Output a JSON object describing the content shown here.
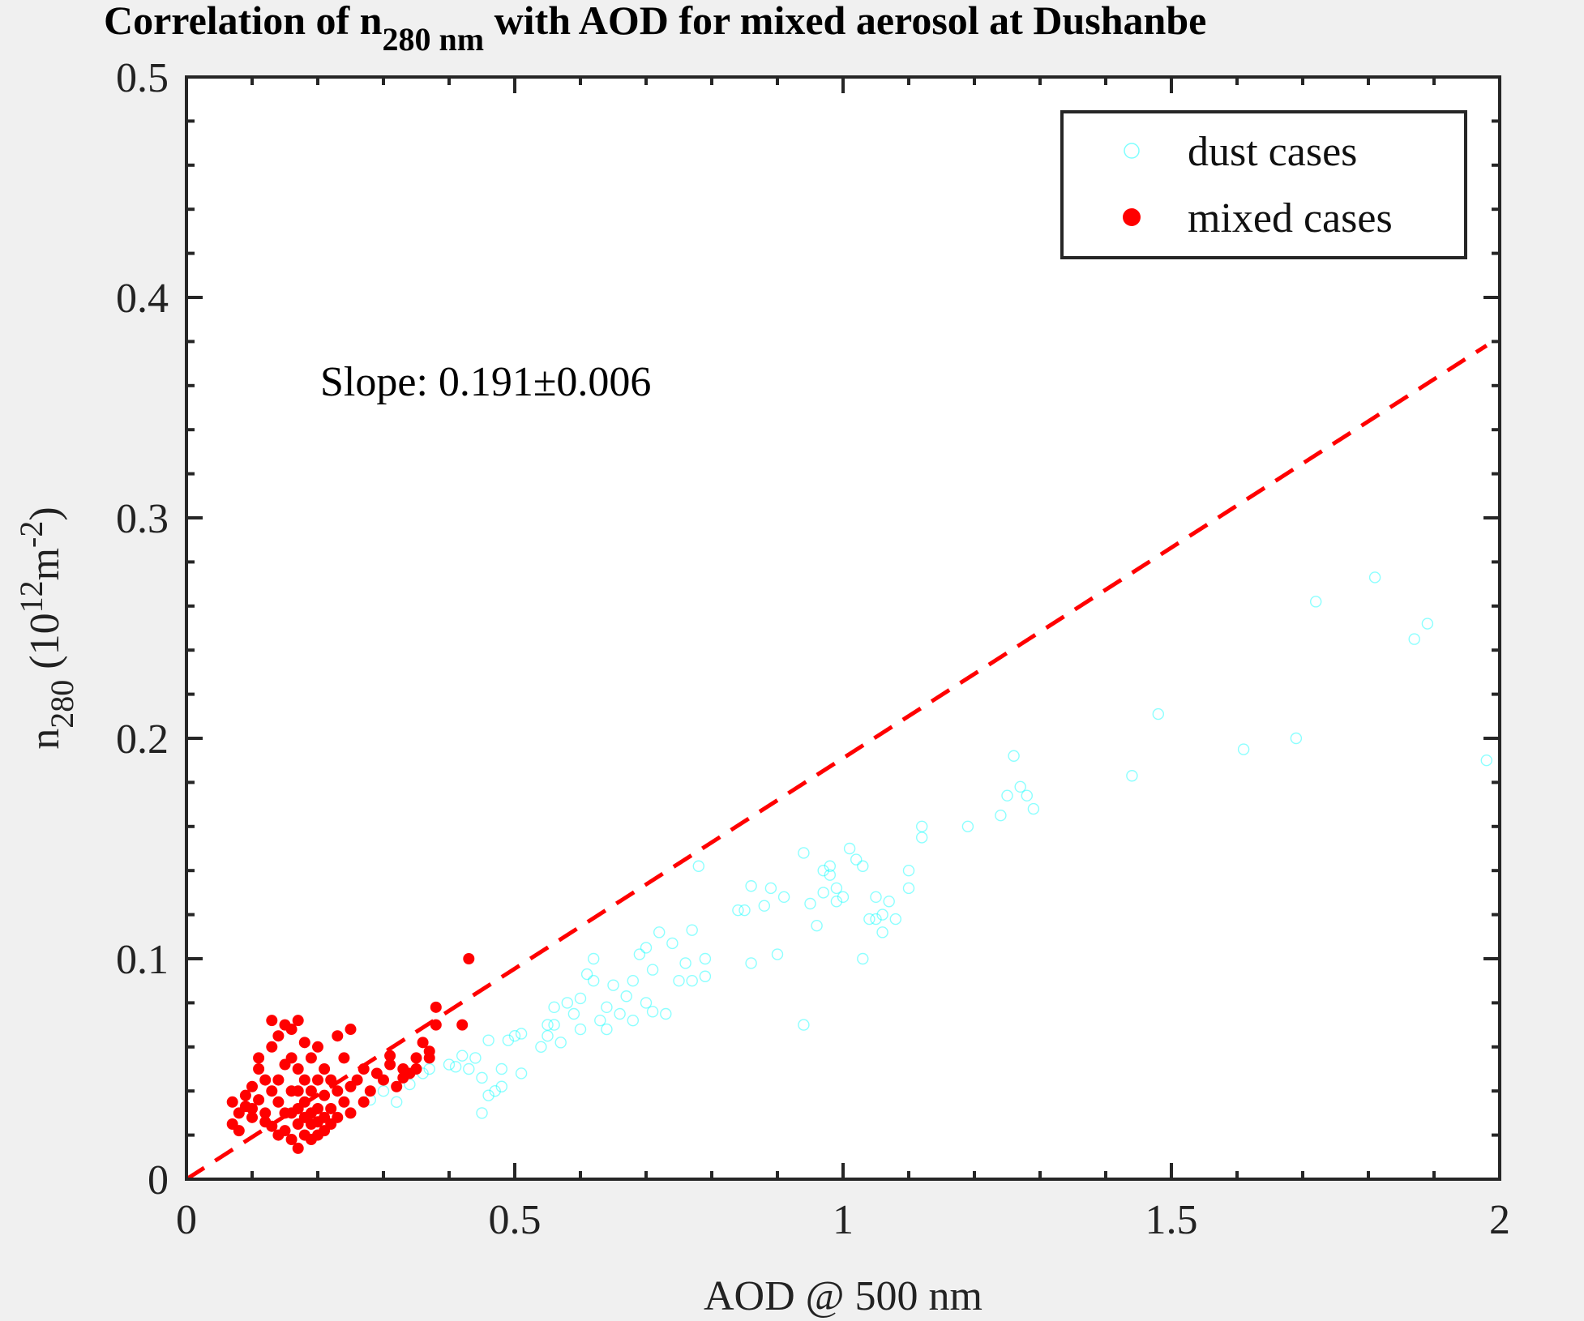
{
  "title": {
    "prefix": "Correlation of n",
    "subscript": "280 nm",
    "suffix": " with AOD for mixed aerosol at Dushanbe"
  },
  "annotation": "Slope: 0.191±0.006",
  "colors": {
    "background": "#f0f0f0",
    "plot_area": "#ffffff",
    "dust": "#00ffff",
    "mixed": "#ff0000",
    "fit_line": "#ff0000"
  },
  "chart_data": {
    "type": "scatter",
    "title": "Correlation of n280 nm with AOD for mixed aerosol at Dushanbe",
    "xlabel": "AOD @ 500 nm",
    "ylabel": {
      "base": "n",
      "base_sub": "280",
      "unit_open": " (10",
      "unit_sup1": "12",
      "unit_mid": "m",
      "unit_sup2": "-2",
      "unit_close": ")"
    },
    "xlim": [
      0,
      2
    ],
    "ylim": [
      0,
      0.5
    ],
    "x_ticks": [
      0,
      0.5,
      1,
      1.5,
      2
    ],
    "x_tick_labels": [
      "0",
      "0.5",
      "1",
      "1.5",
      "2"
    ],
    "y_ticks": [
      0,
      0.1,
      0.2,
      0.3,
      0.4,
      0.5
    ],
    "y_tick_labels": [
      "0",
      "0.1",
      "0.2",
      "0.3",
      "0.4",
      "0.5"
    ],
    "legend_position": "top-right",
    "grid": false,
    "fit_line": {
      "slope": 0.191,
      "intercept": 0,
      "x_range": [
        0,
        1.98
      ],
      "style": "dashed"
    },
    "series": [
      {
        "name": "dust cases",
        "marker": "open-circle",
        "points": [
          [
            0.28,
            0.036
          ],
          [
            0.3,
            0.04
          ],
          [
            0.32,
            0.035
          ],
          [
            0.34,
            0.043
          ],
          [
            0.36,
            0.048
          ],
          [
            0.37,
            0.05
          ],
          [
            0.4,
            0.052
          ],
          [
            0.41,
            0.051
          ],
          [
            0.42,
            0.056
          ],
          [
            0.43,
            0.05
          ],
          [
            0.44,
            0.055
          ],
          [
            0.45,
            0.03
          ],
          [
            0.45,
            0.046
          ],
          [
            0.46,
            0.038
          ],
          [
            0.46,
            0.063
          ],
          [
            0.47,
            0.04
          ],
          [
            0.48,
            0.042
          ],
          [
            0.48,
            0.05
          ],
          [
            0.49,
            0.063
          ],
          [
            0.5,
            0.065
          ],
          [
            0.51,
            0.066
          ],
          [
            0.51,
            0.048
          ],
          [
            0.54,
            0.06
          ],
          [
            0.55,
            0.065
          ],
          [
            0.55,
            0.07
          ],
          [
            0.56,
            0.07
          ],
          [
            0.56,
            0.078
          ],
          [
            0.57,
            0.062
          ],
          [
            0.58,
            0.08
          ],
          [
            0.59,
            0.075
          ],
          [
            0.6,
            0.068
          ],
          [
            0.6,
            0.082
          ],
          [
            0.61,
            0.093
          ],
          [
            0.62,
            0.09
          ],
          [
            0.62,
            0.1
          ],
          [
            0.63,
            0.072
          ],
          [
            0.64,
            0.068
          ],
          [
            0.64,
            0.078
          ],
          [
            0.65,
            0.088
          ],
          [
            0.66,
            0.075
          ],
          [
            0.67,
            0.083
          ],
          [
            0.68,
            0.072
          ],
          [
            0.68,
            0.09
          ],
          [
            0.69,
            0.102
          ],
          [
            0.7,
            0.105
          ],
          [
            0.7,
            0.08
          ],
          [
            0.71,
            0.076
          ],
          [
            0.71,
            0.095
          ],
          [
            0.72,
            0.112
          ],
          [
            0.73,
            0.075
          ],
          [
            0.74,
            0.107
          ],
          [
            0.75,
            0.09
          ],
          [
            0.76,
            0.098
          ],
          [
            0.77,
            0.09
          ],
          [
            0.77,
            0.113
          ],
          [
            0.78,
            0.142
          ],
          [
            0.79,
            0.092
          ],
          [
            0.79,
            0.1
          ],
          [
            0.84,
            0.122
          ],
          [
            0.85,
            0.122
          ],
          [
            0.86,
            0.133
          ],
          [
            0.86,
            0.098
          ],
          [
            0.88,
            0.124
          ],
          [
            0.89,
            0.132
          ],
          [
            0.9,
            0.102
          ],
          [
            0.91,
            0.128
          ],
          [
            0.94,
            0.148
          ],
          [
            0.94,
            0.07
          ],
          [
            0.95,
            0.125
          ],
          [
            0.96,
            0.115
          ],
          [
            0.97,
            0.13
          ],
          [
            0.97,
            0.14
          ],
          [
            0.98,
            0.142
          ],
          [
            0.98,
            0.138
          ],
          [
            0.99,
            0.132
          ],
          [
            0.99,
            0.126
          ],
          [
            1.0,
            0.128
          ],
          [
            1.01,
            0.15
          ],
          [
            1.02,
            0.145
          ],
          [
            1.03,
            0.142
          ],
          [
            1.03,
            0.1
          ],
          [
            1.04,
            0.118
          ],
          [
            1.05,
            0.118
          ],
          [
            1.05,
            0.128
          ],
          [
            1.06,
            0.112
          ],
          [
            1.06,
            0.12
          ],
          [
            1.07,
            0.126
          ],
          [
            1.08,
            0.118
          ],
          [
            1.1,
            0.132
          ],
          [
            1.1,
            0.14
          ],
          [
            1.12,
            0.155
          ],
          [
            1.12,
            0.16
          ],
          [
            1.19,
            0.16
          ],
          [
            1.24,
            0.165
          ],
          [
            1.25,
            0.174
          ],
          [
            1.26,
            0.192
          ],
          [
            1.27,
            0.178
          ],
          [
            1.28,
            0.174
          ],
          [
            1.29,
            0.168
          ],
          [
            1.44,
            0.183
          ],
          [
            1.48,
            0.211
          ],
          [
            1.61,
            0.195
          ],
          [
            1.69,
            0.2
          ],
          [
            1.72,
            0.262
          ],
          [
            1.81,
            0.273
          ],
          [
            1.87,
            0.245
          ],
          [
            1.89,
            0.252
          ],
          [
            1.98,
            0.19
          ]
        ]
      },
      {
        "name": "mixed cases",
        "marker": "filled-circle",
        "points": [
          [
            0.07,
            0.025
          ],
          [
            0.07,
            0.035
          ],
          [
            0.08,
            0.03
          ],
          [
            0.08,
            0.022
          ],
          [
            0.09,
            0.033
          ],
          [
            0.09,
            0.038
          ],
          [
            0.1,
            0.028
          ],
          [
            0.1,
            0.042
          ],
          [
            0.1,
            0.032
          ],
          [
            0.11,
            0.05
          ],
          [
            0.11,
            0.055
          ],
          [
            0.11,
            0.036
          ],
          [
            0.12,
            0.045
          ],
          [
            0.12,
            0.03
          ],
          [
            0.12,
            0.026
          ],
          [
            0.13,
            0.072
          ],
          [
            0.13,
            0.06
          ],
          [
            0.13,
            0.04
          ],
          [
            0.13,
            0.024
          ],
          [
            0.14,
            0.065
          ],
          [
            0.14,
            0.045
          ],
          [
            0.14,
            0.035
          ],
          [
            0.14,
            0.02
          ],
          [
            0.15,
            0.07
          ],
          [
            0.15,
            0.052
          ],
          [
            0.15,
            0.03
          ],
          [
            0.15,
            0.022
          ],
          [
            0.16,
            0.068
          ],
          [
            0.16,
            0.055
          ],
          [
            0.16,
            0.04
          ],
          [
            0.16,
            0.03
          ],
          [
            0.16,
            0.018
          ],
          [
            0.17,
            0.072
          ],
          [
            0.17,
            0.05
          ],
          [
            0.17,
            0.04
          ],
          [
            0.17,
            0.032
          ],
          [
            0.17,
            0.025
          ],
          [
            0.17,
            0.014
          ],
          [
            0.18,
            0.062
          ],
          [
            0.18,
            0.045
          ],
          [
            0.18,
            0.035
          ],
          [
            0.18,
            0.028
          ],
          [
            0.18,
            0.02
          ],
          [
            0.19,
            0.055
          ],
          [
            0.19,
            0.04
          ],
          [
            0.19,
            0.03
          ],
          [
            0.19,
            0.025
          ],
          [
            0.19,
            0.018
          ],
          [
            0.2,
            0.06
          ],
          [
            0.2,
            0.045
          ],
          [
            0.2,
            0.032
          ],
          [
            0.2,
            0.026
          ],
          [
            0.2,
            0.02
          ],
          [
            0.21,
            0.05
          ],
          [
            0.21,
            0.038
          ],
          [
            0.21,
            0.028
          ],
          [
            0.21,
            0.022
          ],
          [
            0.22,
            0.045
          ],
          [
            0.22,
            0.032
          ],
          [
            0.22,
            0.025
          ],
          [
            0.23,
            0.065
          ],
          [
            0.23,
            0.04
          ],
          [
            0.23,
            0.028
          ],
          [
            0.24,
            0.055
          ],
          [
            0.24,
            0.035
          ],
          [
            0.25,
            0.068
          ],
          [
            0.25,
            0.042
          ],
          [
            0.25,
            0.03
          ],
          [
            0.26,
            0.045
          ],
          [
            0.27,
            0.05
          ],
          [
            0.27,
            0.035
          ],
          [
            0.28,
            0.04
          ],
          [
            0.29,
            0.048
          ],
          [
            0.3,
            0.045
          ],
          [
            0.31,
            0.052
          ],
          [
            0.31,
            0.056
          ],
          [
            0.32,
            0.042
          ],
          [
            0.33,
            0.05
          ],
          [
            0.33,
            0.046
          ],
          [
            0.34,
            0.048
          ],
          [
            0.35,
            0.055
          ],
          [
            0.35,
            0.05
          ],
          [
            0.36,
            0.062
          ],
          [
            0.37,
            0.058
          ],
          [
            0.37,
            0.055
          ],
          [
            0.38,
            0.07
          ],
          [
            0.38,
            0.078
          ],
          [
            0.42,
            0.07
          ],
          [
            0.43,
            0.1
          ]
        ]
      }
    ]
  }
}
